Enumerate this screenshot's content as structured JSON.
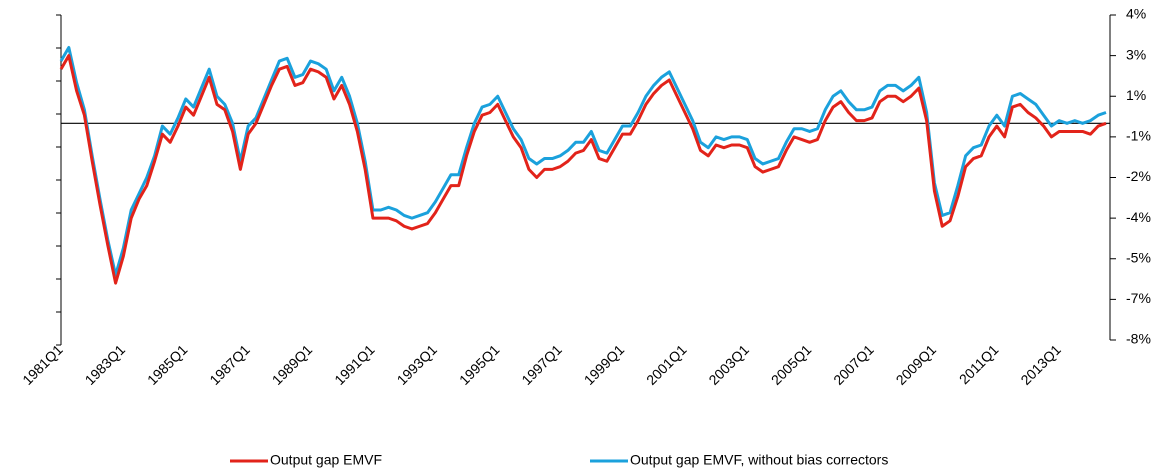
{
  "chart_data": {
    "type": "line",
    "categories": [
      "1981Q1",
      null,
      null,
      null,
      null,
      null,
      null,
      null,
      "1983Q1",
      null,
      null,
      null,
      null,
      null,
      null,
      null,
      "1985Q1",
      null,
      null,
      null,
      null,
      null,
      null,
      null,
      "1987Q1",
      null,
      null,
      null,
      null,
      null,
      null,
      null,
      "1989Q1",
      null,
      null,
      null,
      null,
      null,
      null,
      null,
      "1991Q1",
      null,
      null,
      null,
      null,
      null,
      null,
      null,
      "1993Q1",
      null,
      null,
      null,
      null,
      null,
      null,
      null,
      "1995Q1",
      null,
      null,
      null,
      null,
      null,
      null,
      null,
      "1997Q1",
      null,
      null,
      null,
      null,
      null,
      null,
      null,
      "1999Q1",
      null,
      null,
      null,
      null,
      null,
      null,
      null,
      "2001Q1",
      null,
      null,
      null,
      null,
      null,
      null,
      null,
      "2003Q1",
      null,
      null,
      null,
      null,
      null,
      null,
      null,
      "2005Q1",
      null,
      null,
      null,
      null,
      null,
      null,
      null,
      "2007Q1",
      null,
      null,
      null,
      null,
      null,
      null,
      null,
      "2009Q1",
      null,
      null,
      null,
      null,
      null,
      null,
      null,
      "2011Q1",
      null,
      null,
      null,
      null,
      null,
      null,
      null,
      "2013Q1",
      null,
      null,
      null,
      null,
      null,
      null
    ],
    "series": [
      {
        "name": "Output gap EMVF",
        "color": "#e2231a",
        "values": [
          2.0,
          2.5,
          1.2,
          0.3,
          -1.4,
          -3.0,
          -4.5,
          -5.9,
          -4.9,
          -3.5,
          -2.8,
          -2.3,
          -1.4,
          -0.4,
          -0.7,
          -0.1,
          0.6,
          0.3,
          1.0,
          1.7,
          0.7,
          0.5,
          -0.3,
          -1.7,
          -0.4,
          0.0,
          0.7,
          1.4,
          2.0,
          2.1,
          1.4,
          1.5,
          2.0,
          1.9,
          1.7,
          0.9,
          1.4,
          0.7,
          -0.3,
          -1.7,
          -3.5,
          -3.5,
          -3.5,
          -3.6,
          -3.8,
          -3.9,
          -3.8,
          -3.7,
          -3.3,
          -2.8,
          -2.3,
          -2.3,
          -1.2,
          -0.3,
          0.3,
          0.4,
          0.7,
          0.1,
          -0.5,
          -0.9,
          -1.7,
          -2.0,
          -1.7,
          -1.7,
          -1.6,
          -1.4,
          -1.1,
          -1.0,
          -0.6,
          -1.3,
          -1.4,
          -0.9,
          -0.4,
          -0.4,
          0.1,
          0.7,
          1.1,
          1.4,
          1.6,
          1.0,
          0.4,
          -0.2,
          -1.0,
          -1.2,
          -0.8,
          -0.9,
          -0.8,
          -0.8,
          -0.9,
          -1.6,
          -1.8,
          -1.7,
          -1.6,
          -1.0,
          -0.5,
          -0.6,
          -0.7,
          -0.6,
          0.1,
          0.6,
          0.8,
          0.4,
          0.1,
          0.1,
          0.2,
          0.8,
          1.0,
          1.0,
          0.8,
          1.0,
          1.3,
          0.1,
          -2.5,
          -3.8,
          -3.6,
          -2.7,
          -1.6,
          -1.3,
          -1.2,
          -0.5,
          -0.1,
          -0.5,
          0.6,
          0.7,
          0.4,
          0.2,
          -0.1,
          -0.5,
          -0.3,
          -0.3,
          -0.3,
          -0.3,
          -0.4,
          -0.1,
          0.0
        ]
      },
      {
        "name": "Output gap EMVF, without bias correctors",
        "color": "#1ba1dc",
        "values": [
          2.3,
          2.8,
          1.5,
          0.5,
          -1.2,
          -2.8,
          -4.3,
          -5.6,
          -4.6,
          -3.2,
          -2.6,
          -2.0,
          -1.2,
          -0.1,
          -0.4,
          0.2,
          0.9,
          0.6,
          1.3,
          2.0,
          1.0,
          0.7,
          0.0,
          -1.4,
          -0.1,
          0.2,
          0.9,
          1.6,
          2.3,
          2.4,
          1.7,
          1.8,
          2.3,
          2.2,
          2.0,
          1.2,
          1.7,
          1.0,
          0.0,
          -1.4,
          -3.2,
          -3.2,
          -3.1,
          -3.2,
          -3.4,
          -3.5,
          -3.4,
          -3.3,
          -2.9,
          -2.4,
          -1.9,
          -1.9,
          -0.9,
          0.0,
          0.6,
          0.7,
          1.0,
          0.4,
          -0.2,
          -0.6,
          -1.3,
          -1.5,
          -1.3,
          -1.3,
          -1.2,
          -1.0,
          -0.7,
          -0.7,
          -0.3,
          -1.0,
          -1.1,
          -0.6,
          -0.1,
          -0.1,
          0.4,
          1.0,
          1.4,
          1.7,
          1.9,
          1.3,
          0.7,
          0.1,
          -0.7,
          -0.9,
          -0.5,
          -0.6,
          -0.5,
          -0.5,
          -0.6,
          -1.3,
          -1.5,
          -1.4,
          -1.3,
          -0.7,
          -0.2,
          -0.2,
          -0.3,
          -0.2,
          0.5,
          1.0,
          1.2,
          0.8,
          0.5,
          0.5,
          0.6,
          1.2,
          1.4,
          1.4,
          1.2,
          1.4,
          1.7,
          0.4,
          -2.2,
          -3.4,
          -3.3,
          -2.3,
          -1.2,
          -0.9,
          -0.8,
          -0.1,
          0.3,
          -0.1,
          1.0,
          1.1,
          0.9,
          0.7,
          0.3,
          -0.1,
          0.1,
          0.0,
          0.1,
          0.0,
          0.1,
          0.3,
          0.4
        ]
      }
    ],
    "ylim": [
      -8,
      4
    ],
    "yticks": [
      {
        "value": -8,
        "label": "-8%"
      },
      {
        "value": -6.5,
        "label": "-7%"
      },
      {
        "value": -5,
        "label": "-5%"
      },
      {
        "value": -3.5,
        "label": "-4%"
      },
      {
        "value": -2,
        "label": "-2%"
      },
      {
        "value": -0.5,
        "label": "-1%"
      },
      {
        "value": 1,
        "label": "1%"
      },
      {
        "value": 2.5,
        "label": "3%"
      },
      {
        "value": 4,
        "label": "4%"
      }
    ],
    "y_axis_side": "right",
    "grid": false
  }
}
